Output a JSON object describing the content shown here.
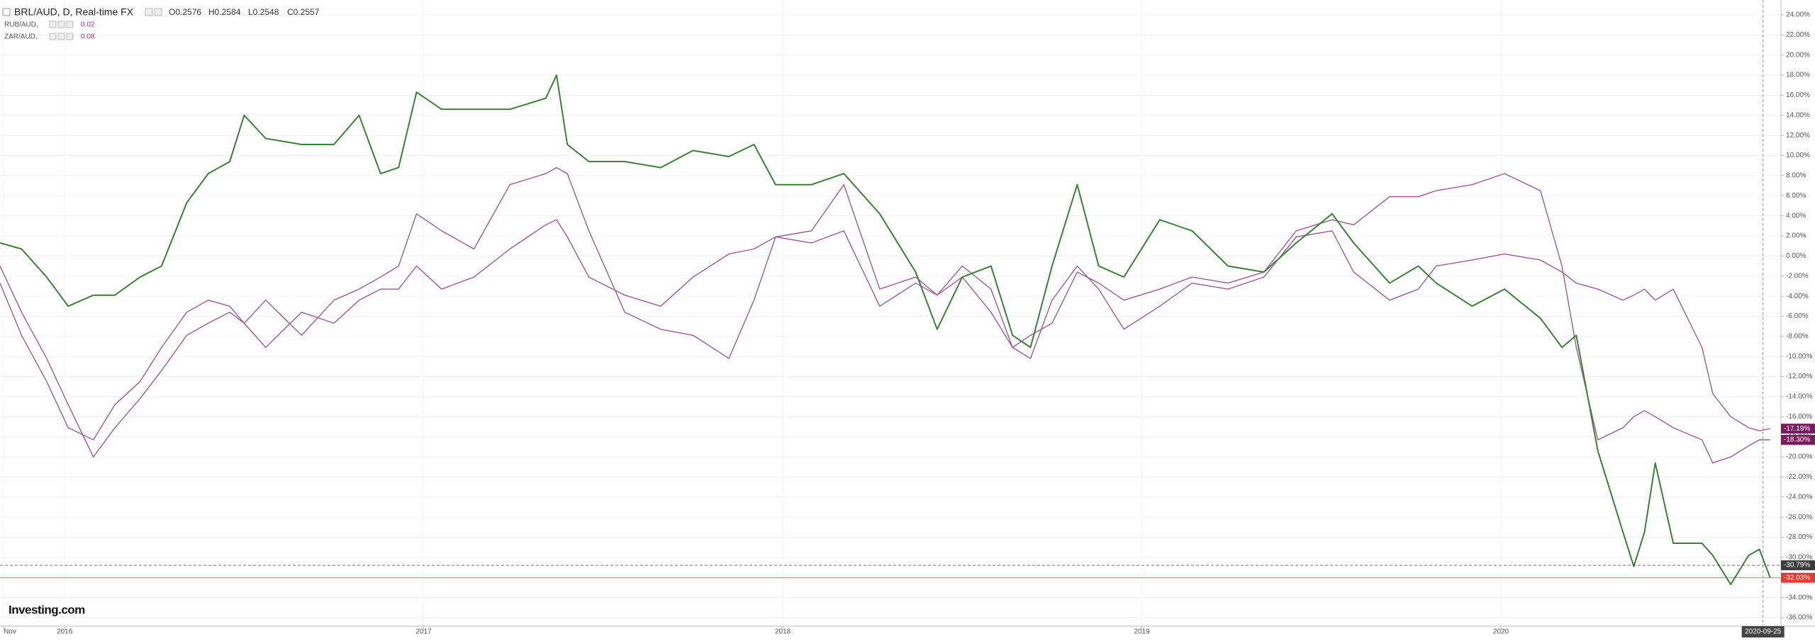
{
  "chart_data": {
    "type": "line",
    "title": "BRL/AUD, D, Real-time FX",
    "ohlc": [
      "O0.2576",
      "H0.2584",
      "L0.2548",
      "C0.2557"
    ],
    "logo": "Investing.com",
    "grid": true,
    "x": [
      2015.82,
      2015.88,
      2015.95,
      2016.01,
      2016.08,
      2016.14,
      2016.21,
      2016.27,
      2016.34,
      2016.4,
      2016.46,
      2016.5,
      2016.56,
      2016.66,
      2016.75,
      2016.82,
      2016.88,
      2016.93,
      2016.98,
      2017.05,
      2017.14,
      2017.24,
      2017.34,
      2017.37,
      2017.4,
      2017.46,
      2017.56,
      2017.66,
      2017.75,
      2017.85,
      2017.92,
      2017.98,
      2018.08,
      2018.17,
      2018.27,
      2018.37,
      2018.43,
      2018.5,
      2018.58,
      2018.64,
      2018.69,
      2018.75,
      2018.82,
      2018.88,
      2018.95,
      2019.05,
      2019.14,
      2019.24,
      2019.34,
      2019.43,
      2019.53,
      2019.59,
      2019.69,
      2019.77,
      2019.82,
      2019.92,
      2020.01,
      2020.11,
      2020.17,
      2020.21,
      2020.27,
      2020.34,
      2020.37,
      2020.4,
      2020.43,
      2020.48,
      2020.56,
      2020.59,
      2020.64,
      2020.69,
      2020.72,
      2020.75
    ],
    "series": [
      {
        "name": "BRL/AUD, D, Real-time FX",
        "color": "#3d7f3a",
        "width": 2,
        "values": [
          1.3,
          0.7,
          -2.1,
          -5.0,
          -3.9,
          -3.9,
          -2.1,
          -1.0,
          5.3,
          8.2,
          9.4,
          14.0,
          11.7,
          11.1,
          11.1,
          14.0,
          8.2,
          8.8,
          16.3,
          14.6,
          14.6,
          14.6,
          15.7,
          18.0,
          11.1,
          9.4,
          9.4,
          8.8,
          10.5,
          9.9,
          11.1,
          7.1,
          7.1,
          8.2,
          4.2,
          -1.6,
          -7.3,
          -2.1,
          -1.0,
          -7.9,
          -9.1,
          -1.0,
          7.1,
          -1.0,
          -2.1,
          3.6,
          2.5,
          -1.0,
          -1.6,
          1.3,
          4.2,
          1.3,
          -2.7,
          -1.0,
          -2.7,
          -5.0,
          -3.3,
          -6.2,
          -9.1,
          -7.9,
          -19.4,
          -27.5,
          -30.9,
          -27.5,
          -20.6,
          -28.6,
          -28.6,
          -29.8,
          -32.7,
          -29.8,
          -29.2,
          -32.03
        ]
      },
      {
        "name": "RUB/AUD,",
        "color": "#9b5c96",
        "width": 1.4,
        "last_change": 0.02,
        "legend_color": "#b03060",
        "values": [
          -2.7,
          -7.9,
          -12.5,
          -17.1,
          -18.3,
          -14.8,
          -12.5,
          -9.1,
          -5.6,
          -4.4,
          -5.0,
          -6.7,
          -4.4,
          -7.9,
          -4.4,
          -3.3,
          -2.1,
          -1.0,
          4.2,
          2.5,
          0.7,
          7.1,
          8.2,
          8.8,
          8.2,
          2.5,
          -5.6,
          -7.3,
          -7.9,
          -10.2,
          -4.4,
          1.9,
          2.5,
          7.1,
          -3.3,
          -2.1,
          -3.9,
          -2.1,
          -5.6,
          -9.1,
          -7.9,
          -6.7,
          -1.6,
          -2.7,
          -4.4,
          -3.3,
          -2.1,
          -2.7,
          -1.6,
          2.5,
          3.6,
          3.1,
          5.9,
          5.9,
          6.5,
          7.1,
          8.2,
          6.5,
          -1.0,
          -9.1,
          -18.3,
          -17.1,
          -16.0,
          -15.4,
          -16.0,
          -17.1,
          -18.3,
          -20.6,
          -20.0,
          -18.9,
          -18.3,
          -18.3
        ]
      },
      {
        "name": "ZAR/AUD,",
        "color": "#9b5c96",
        "width": 1.4,
        "last_change": 0.08,
        "legend_color": "#b03060",
        "values": [
          -1.0,
          -5.6,
          -10.2,
          -14.8,
          -20.0,
          -17.1,
          -14.2,
          -11.4,
          -7.9,
          -6.7,
          -5.6,
          -6.7,
          -9.1,
          -5.6,
          -6.7,
          -4.4,
          -3.3,
          -3.3,
          -1.0,
          -3.3,
          -2.1,
          0.7,
          3.1,
          3.6,
          1.9,
          -2.1,
          -3.9,
          -5.0,
          -2.1,
          0.2,
          0.7,
          1.9,
          1.3,
          2.5,
          -5.0,
          -2.7,
          -3.9,
          -1.0,
          -3.3,
          -9.1,
          -10.2,
          -4.4,
          -1.0,
          -3.3,
          -7.3,
          -5.0,
          -2.7,
          -3.3,
          -2.1,
          1.9,
          2.5,
          -1.6,
          -4.4,
          -3.3,
          -1.0,
          -0.4,
          0.2,
          -0.4,
          -1.6,
          -2.7,
          -3.3,
          -4.4,
          -3.9,
          -3.3,
          -4.4,
          -3.3,
          -9.1,
          -13.7,
          -16.0,
          -17.1,
          -17.4,
          -17.19
        ]
      }
    ],
    "price_tags": [
      {
        "value": -17.19,
        "label": "-17.19%",
        "color": "#7b1a5e"
      },
      {
        "value": -18.3,
        "label": "-18.30%",
        "color": "#7b1a5e"
      },
      {
        "value": -30.79,
        "label": "-30.79%",
        "color": "#3b3b3b"
      },
      {
        "value": -32.03,
        "label": "-32.03%",
        "color": "#e53935"
      }
    ],
    "cursor": {
      "x": 2020.73,
      "label": "2020-09-25"
    },
    "xlim": [
      2015.82,
      2020.78
    ],
    "xticks": [
      {
        "value": 2015.83,
        "label": "Nov"
      },
      2016,
      2017,
      2018,
      2019,
      2020
    ],
    "ylim": [
      -36,
      24
    ],
    "yticks": [
      {
        "value": 24,
        "label": "24.00%"
      },
      {
        "value": 22,
        "label": "22.00%"
      },
      {
        "value": 20,
        "label": "20.00%"
      },
      {
        "value": 18,
        "label": "18.00%"
      },
      {
        "value": 16,
        "label": "16.00%"
      },
      {
        "value": 14,
        "label": "14.00%"
      },
      {
        "value": 12,
        "label": "12.00%"
      },
      {
        "value": 10,
        "label": "10.00%"
      },
      {
        "value": 8,
        "label": "8.00%"
      },
      {
        "value": 6,
        "label": "6.00%"
      },
      {
        "value": 4,
        "label": "4.00%"
      },
      {
        "value": 2,
        "label": "2.00%"
      },
      {
        "value": 0,
        "label": "0.00%"
      },
      {
        "value": -2,
        "label": "-2.00%"
      },
      {
        "value": -4,
        "label": "-4.00%"
      },
      {
        "value": -6,
        "label": "-6.00%"
      },
      {
        "value": -8,
        "label": "-8.00%"
      },
      {
        "value": -10,
        "label": "-10.00%"
      },
      {
        "value": -12,
        "label": "-12.00%"
      },
      {
        "value": -14,
        "label": "-14.00%"
      },
      {
        "value": -16,
        "label": "-16.00%"
      },
      {
        "value": -18,
        "label": "-18.00%"
      },
      {
        "value": -20,
        "label": "-20.00%"
      },
      {
        "value": -22,
        "label": "-22.00%"
      },
      {
        "value": -24,
        "label": "-24.00%"
      },
      {
        "value": -26,
        "label": "-26.00%"
      },
      {
        "value": -28,
        "label": "-28.00%"
      },
      {
        "value": -30,
        "label": "-30.00%"
      },
      {
        "value": -32,
        "label": "-32.00%"
      },
      {
        "value": -34,
        "label": "-34.00%"
      },
      {
        "value": -36,
        "label": "-36.00%"
      }
    ]
  }
}
